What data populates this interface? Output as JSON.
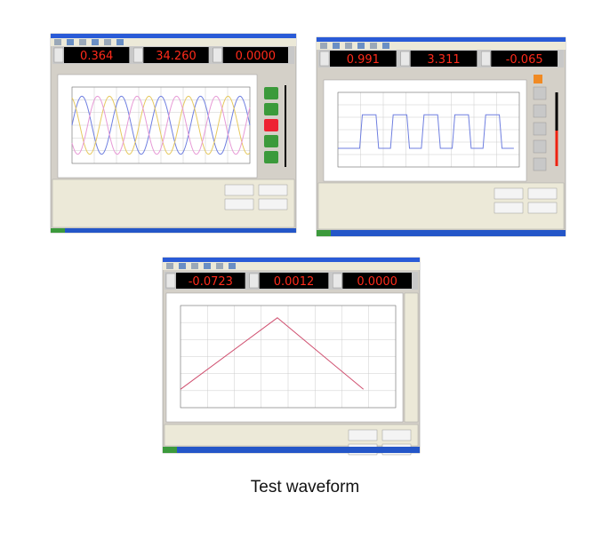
{
  "screenshots": [
    {
      "readouts": [
        "0.364",
        "34.260",
        "0.0000"
      ]
    },
    {
      "readouts": [
        "0.991",
        "3.311",
        "-0.065"
      ]
    },
    {
      "readouts": [
        "-0.0723",
        "0.0012",
        "0.0000"
      ]
    }
  ],
  "caption": "Test waveform"
}
